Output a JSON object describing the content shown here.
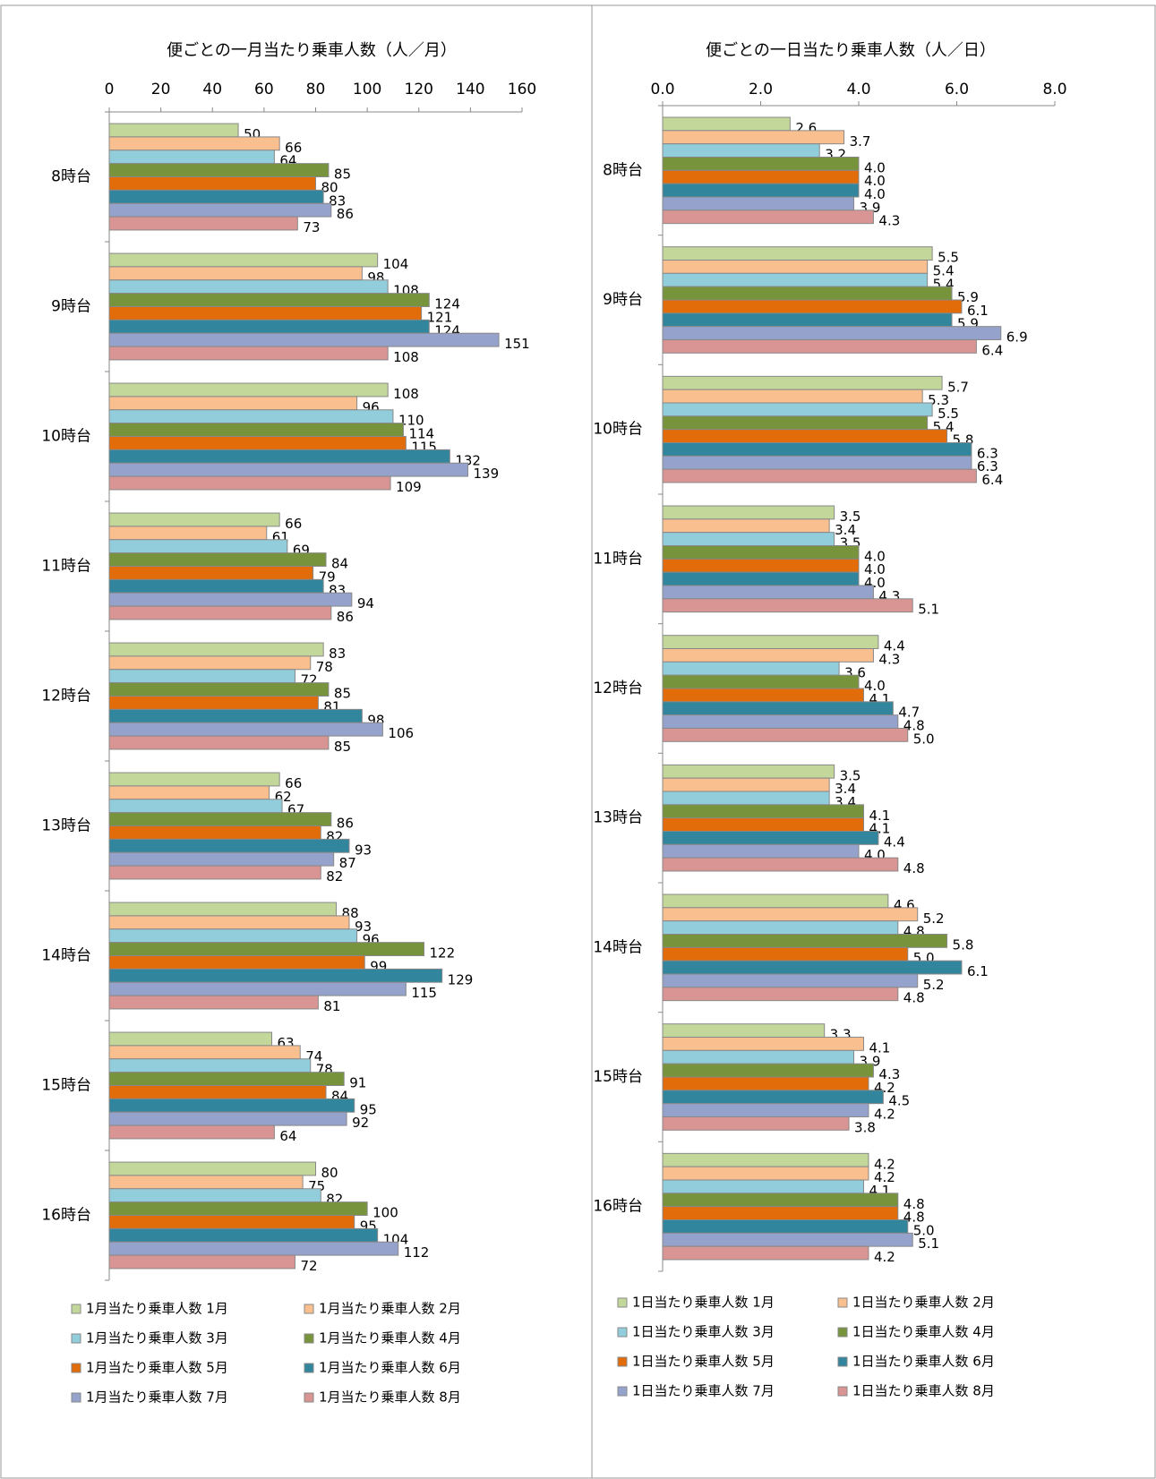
{
  "chart_data": [
    {
      "type": "barh",
      "title": "便ごとの一月当たり乗車人数（人／月）",
      "categories": [
        "8時台",
        "9時台",
        "10時台",
        "11時台",
        "12時台",
        "13時台",
        "14時台",
        "15時台",
        "16時台"
      ],
      "xlim": [
        0,
        160
      ],
      "xticks": [
        0,
        20,
        40,
        60,
        80,
        100,
        120,
        140,
        160
      ],
      "grid": false,
      "series": [
        {
          "name": "1月当たり乗車人数 1月",
          "color": "#c4d79b",
          "values": [
            50,
            104,
            108,
            66,
            83,
            66,
            88,
            63,
            80
          ]
        },
        {
          "name": "1月当たり乗車人数 2月",
          "color": "#fabf8f",
          "values": [
            66,
            98,
            96,
            61,
            78,
            62,
            93,
            74,
            75
          ]
        },
        {
          "name": "1月当たり乗車人数 3月",
          "color": "#92cddc",
          "values": [
            64,
            108,
            110,
            69,
            72,
            67,
            96,
            78,
            82
          ]
        },
        {
          "name": "1月当たり乗車人数 4月",
          "color": "#77933c",
          "values": [
            85,
            124,
            114,
            84,
            85,
            86,
            122,
            91,
            100
          ]
        },
        {
          "name": "1月当たり乗車人数 5月",
          "color": "#e26b0a",
          "values": [
            80,
            121,
            115,
            79,
            81,
            82,
            99,
            84,
            95
          ]
        },
        {
          "name": "1月当たり乗車人数 6月",
          "color": "#31859c",
          "values": [
            83,
            124,
            132,
            83,
            98,
            93,
            129,
            95,
            104
          ]
        },
        {
          "name": "1月当たり乗車人数 7月",
          "color": "#95a3cc",
          "values": [
            86,
            151,
            139,
            94,
            106,
            87,
            115,
            92,
            112
          ]
        },
        {
          "name": "1月当たり乗車人数 8月",
          "color": "#d99594",
          "values": [
            73,
            108,
            109,
            86,
            85,
            82,
            81,
            64,
            72
          ]
        }
      ]
    },
    {
      "type": "barh",
      "title": "便ごとの一日当たり乗車人数（人／日）",
      "categories": [
        "8時台",
        "9時台",
        "10時台",
        "11時台",
        "12時台",
        "13時台",
        "14時台",
        "15時台",
        "16時台"
      ],
      "xlim": [
        0,
        8
      ],
      "xticks": [
        {
          "value": 0,
          "label": "0.0"
        },
        {
          "value": 2,
          "label": "2.0"
        },
        {
          "value": 4,
          "label": "4.0"
        },
        {
          "value": 6,
          "label": "6.0"
        },
        {
          "value": 8,
          "label": "8.0"
        }
      ],
      "grid": false,
      "series": [
        {
          "name": "1日当たり乗車人数 1月",
          "color": "#c4d79b",
          "values": [
            2.6,
            5.5,
            5.7,
            3.5,
            4.4,
            3.5,
            4.6,
            3.3,
            4.2
          ],
          "value_labels": [
            "2.6",
            "5.5",
            "5.7",
            "3.5",
            "4.4",
            "3.5",
            "4.6",
            "3.3",
            "4.2"
          ]
        },
        {
          "name": "1日当たり乗車人数 2月",
          "color": "#fabf8f",
          "values": [
            3.7,
            5.4,
            5.3,
            3.4,
            4.3,
            3.4,
            5.2,
            4.1,
            4.2
          ],
          "value_labels": [
            "3.7",
            "5.4",
            "5.3",
            "3.4",
            "4.3",
            "3.4",
            "5.2",
            "4.1",
            "4.2"
          ]
        },
        {
          "name": "1日当たり乗車人数 3月",
          "color": "#92cddc",
          "values": [
            3.2,
            5.4,
            5.5,
            3.5,
            3.6,
            3.4,
            4.8,
            3.9,
            4.1
          ],
          "value_labels": [
            "3.2",
            "5.4",
            "5.5",
            "3.5",
            "3.6",
            "3.4",
            "4.8",
            "3.9",
            "4.1"
          ]
        },
        {
          "name": "1日当たり乗車人数 4月",
          "color": "#77933c",
          "values": [
            4,
            5.9,
            5.4,
            4,
            4,
            4.1,
            5.8,
            4.3,
            4.8
          ],
          "value_labels": [
            "4.0",
            "5.9",
            "5.4",
            "4.0",
            "4.0",
            "4.1",
            "5.8",
            "4.3",
            "4.8"
          ]
        },
        {
          "name": "1日当たり乗車人数 5月",
          "color": "#e26b0a",
          "values": [
            4,
            6.1,
            5.8,
            4,
            4.1,
            4.1,
            5,
            4.2,
            4.8
          ],
          "value_labels": [
            "4.0",
            "6.1",
            "5.8",
            "4.0",
            "4.1",
            "4.1",
            "5.0",
            "4.2",
            "4.8"
          ]
        },
        {
          "name": "1日当たり乗車人数 6月",
          "color": "#31859c",
          "values": [
            4,
            5.9,
            6.3,
            4,
            4.7,
            4.4,
            6.1,
            4.5,
            5
          ],
          "value_labels": [
            "4.0",
            "5.9",
            "6.3",
            "4.0",
            "4.7",
            "4.4",
            "6.1",
            "4.5",
            "5.0"
          ]
        },
        {
          "name": "1日当たり乗車人数 7月",
          "color": "#95a3cc",
          "values": [
            3.9,
            6.9,
            6.3,
            4.3,
            4.8,
            4,
            5.2,
            4.2,
            5.1
          ],
          "value_labels": [
            "3.9",
            "6.9",
            "6.3",
            "4.3",
            "4.8",
            "4.0",
            "5.2",
            "4.2",
            "5.1"
          ]
        },
        {
          "name": "1日当たり乗車人数 8月",
          "color": "#d99594",
          "values": [
            4.3,
            6.4,
            6.4,
            5.1,
            5,
            4.8,
            4.8,
            3.8,
            4.2
          ],
          "value_labels": [
            "4.3",
            "6.4",
            "6.4",
            "5.1",
            "5.0",
            "4.8",
            "4.8",
            "3.8",
            "4.2"
          ]
        }
      ]
    }
  ]
}
